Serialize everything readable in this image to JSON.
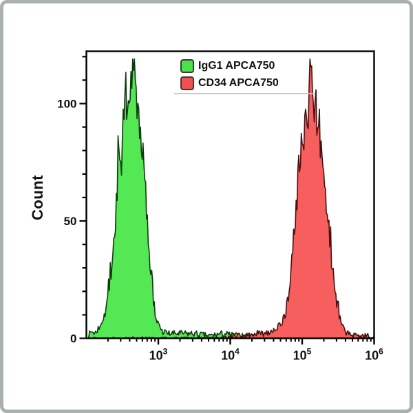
{
  "figure": {
    "background_color": "#ffffff",
    "outer_border_color": "#a9b1b0"
  },
  "chart_data": {
    "type": "area",
    "subtype": "flow-cytometry-histogram",
    "title": "",
    "xlabel": "",
    "ylabel": "Count",
    "grid": false,
    "legend_position": "top-center-inside",
    "x_axis": {
      "scale": "log10",
      "min_exp": 2,
      "max_exp": 6,
      "major_tick_exps": [
        3,
        4,
        5,
        6
      ],
      "major_tick_labels": [
        "10³",
        "10⁴",
        "10⁵",
        "10⁶"
      ],
      "tick_mantissa": "10",
      "minor_ticks_per_decade": [
        2,
        3,
        4,
        5,
        6,
        7,
        8,
        9
      ]
    },
    "y_axis": {
      "min": 0,
      "max": 122,
      "major_ticks": [
        0,
        50,
        100
      ],
      "major_tick_labels": [
        "0",
        "50",
        "100"
      ],
      "minor_tick_step": 10
    },
    "legend": [
      {
        "label": "IgG1 APCA750",
        "color": "#4ce24c",
        "border_color": "#3a3a3a"
      },
      {
        "label": "CD34 APCA750",
        "color": "#f25050",
        "border_color": "#3a3a3a"
      }
    ],
    "series": [
      {
        "name": "IgG1 APCA750",
        "fill": "#55e855",
        "stroke": "#0d3b0d",
        "peak_x": 430,
        "peak_count": 117,
        "noise_seed": 7,
        "points": [
          [
            2.02,
            1
          ],
          [
            2.08,
            3
          ],
          [
            2.12,
            2
          ],
          [
            2.18,
            5
          ],
          [
            2.22,
            8
          ],
          [
            2.27,
            12
          ],
          [
            2.31,
            20
          ],
          [
            2.35,
            30
          ],
          [
            2.39,
            44
          ],
          [
            2.42,
            58
          ],
          [
            2.45,
            78
          ],
          [
            2.48,
            72
          ],
          [
            2.51,
            88
          ],
          [
            2.54,
            95
          ],
          [
            2.57,
            92
          ],
          [
            2.6,
            100
          ],
          [
            2.63,
            112
          ],
          [
            2.65,
            103
          ],
          [
            2.68,
            107
          ],
          [
            2.7,
            99
          ],
          [
            2.73,
            95
          ],
          [
            2.76,
            88
          ],
          [
            2.79,
            76
          ],
          [
            2.82,
            62
          ],
          [
            2.85,
            48
          ],
          [
            2.88,
            34
          ],
          [
            2.91,
            22
          ],
          [
            2.94,
            14
          ],
          [
            2.97,
            8
          ],
          [
            3.01,
            5
          ],
          [
            3.05,
            3
          ],
          [
            3.15,
            2
          ],
          [
            3.3,
            2
          ],
          [
            3.5,
            2
          ],
          [
            3.7,
            1
          ],
          [
            3.9,
            2
          ],
          [
            4.1,
            1
          ],
          [
            4.3,
            1
          ],
          [
            4.6,
            1
          ],
          [
            4.9,
            1
          ],
          [
            5.2,
            1
          ],
          [
            5.5,
            0
          ],
          [
            6.0,
            0
          ]
        ]
      },
      {
        "name": "CD34 APCA750",
        "fill": "#f75e5e",
        "stroke": "#481010",
        "peak_x": 140000,
        "peak_count": 112,
        "noise_seed": 13,
        "points": [
          [
            2.0,
            0
          ],
          [
            3.9,
            0
          ],
          [
            4.1,
            1
          ],
          [
            4.25,
            1
          ],
          [
            4.35,
            2
          ],
          [
            4.45,
            2
          ],
          [
            4.55,
            3
          ],
          [
            4.62,
            4
          ],
          [
            4.68,
            5
          ],
          [
            4.74,
            8
          ],
          [
            4.79,
            14
          ],
          [
            4.83,
            24
          ],
          [
            4.87,
            38
          ],
          [
            4.91,
            55
          ],
          [
            4.95,
            70
          ],
          [
            4.99,
            82
          ],
          [
            5.03,
            90
          ],
          [
            5.07,
            96
          ],
          [
            5.1,
            102
          ],
          [
            5.13,
            108
          ],
          [
            5.16,
            100
          ],
          [
            5.19,
            97
          ],
          [
            5.22,
            92
          ],
          [
            5.26,
            84
          ],
          [
            5.3,
            72
          ],
          [
            5.34,
            58
          ],
          [
            5.38,
            44
          ],
          [
            5.42,
            30
          ],
          [
            5.46,
            20
          ],
          [
            5.5,
            12
          ],
          [
            5.54,
            7
          ],
          [
            5.58,
            4
          ],
          [
            5.63,
            2
          ],
          [
            5.7,
            1
          ],
          [
            5.8,
            1
          ],
          [
            5.9,
            1
          ],
          [
            6.0,
            0
          ]
        ]
      }
    ]
  }
}
